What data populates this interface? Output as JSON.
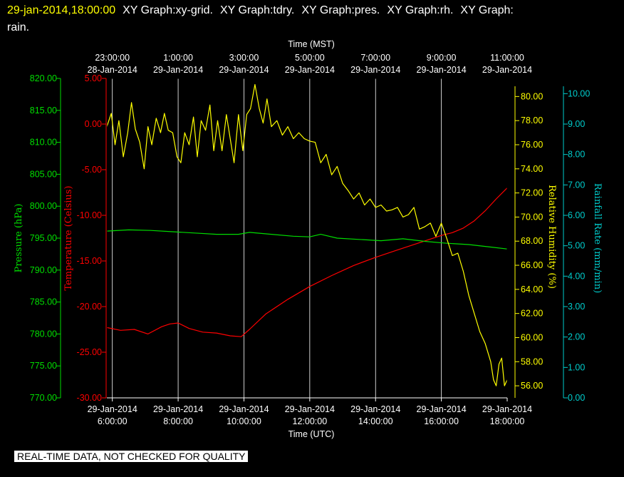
{
  "header": {
    "timestamp": "29-jan-2014,18:00:00",
    "titles": [
      "XY Graph:xy-grid.",
      "XY Graph:tdry.",
      "XY Graph:pres.",
      "XY Graph:rh.",
      "XY Graph:",
      "rain."
    ]
  },
  "footer": {
    "text": "REAL-TIME DATA, NOT CHECKED FOR QUALITY"
  },
  "colors": {
    "temperature": "#ff0000",
    "pressure": "#00dd00",
    "humidity": "#ffff00",
    "rain": "#00cccc",
    "grid": "#ffffff"
  },
  "chart_data": {
    "type": "line",
    "grid": true,
    "x_top_label": "Time (MST)",
    "x_bottom_label": "Time (UTC)",
    "x_range_utc": [
      "2014-01-29 05:50",
      "2014-01-29 18:00"
    ],
    "x_ticks_utc": [
      {
        "time": "6:00:00",
        "date": "29-Jan-2014",
        "utc": "2014-01-29 06:00"
      },
      {
        "time": "8:00:00",
        "date": "29-Jan-2014",
        "utc": "2014-01-29 08:00"
      },
      {
        "time": "10:00:00",
        "date": "29-Jan-2014",
        "utc": "2014-01-29 10:00"
      },
      {
        "time": "12:00:00",
        "date": "29-Jan-2014",
        "utc": "2014-01-29 12:00"
      },
      {
        "time": "14:00:00",
        "date": "29-Jan-2014",
        "utc": "2014-01-29 14:00"
      },
      {
        "time": "16:00:00",
        "date": "29-Jan-2014",
        "utc": "2014-01-29 16:00"
      },
      {
        "time": "18:00:00",
        "date": "29-Jan-2014",
        "utc": "2014-01-29 18:00"
      }
    ],
    "x_ticks_mst": [
      {
        "time": "23:00:00",
        "date": "28-Jan-2014",
        "utc": "2014-01-29 06:00"
      },
      {
        "time": "1:00:00",
        "date": "29-Jan-2014",
        "utc": "2014-01-29 08:00"
      },
      {
        "time": "3:00:00",
        "date": "29-Jan-2014",
        "utc": "2014-01-29 10:00"
      },
      {
        "time": "5:00:00",
        "date": "29-Jan-2014",
        "utc": "2014-01-29 12:00"
      },
      {
        "time": "7:00:00",
        "date": "29-Jan-2014",
        "utc": "2014-01-29 14:00"
      },
      {
        "time": "9:00:00",
        "date": "29-Jan-2014",
        "utc": "2014-01-29 16:00"
      },
      {
        "time": "11:00:00",
        "date": "29-Jan-2014",
        "utc": "2014-01-29 18:00"
      }
    ],
    "axes": {
      "pressure": {
        "label": "Pressure (hPa)",
        "range": [
          770,
          820
        ],
        "ticks": [
          "770.00",
          "775.00",
          "780.00",
          "785.00",
          "790.00",
          "795.00",
          "800.00",
          "805.00",
          "810.00",
          "815.00",
          "820.00"
        ]
      },
      "temperature": {
        "label": "Temperature (Celsius)",
        "range": [
          -30,
          5
        ],
        "ticks": [
          "-30.00",
          "-25.00",
          "-20.00",
          "-15.00",
          "-10.00",
          "-5.00",
          "0.00",
          "5.00"
        ]
      },
      "humidity": {
        "label": "Relative Humidity (%)",
        "range": [
          55,
          81.5
        ],
        "ticks": [
          "56.00",
          "58.00",
          "60.00",
          "62.00",
          "64.00",
          "66.00",
          "68.00",
          "70.00",
          "72.00",
          "74.00",
          "76.00",
          "78.00",
          "80.00"
        ]
      },
      "rain": {
        "label": "Rainfall Rate (mm/min)",
        "range": [
          0,
          10.5
        ],
        "ticks": [
          "0.00",
          "1.00",
          "2.00",
          "3.00",
          "4.00",
          "5.00",
          "6.00",
          "7.00",
          "8.00",
          "9.00",
          "10.00"
        ]
      }
    },
    "series": [
      {
        "key": "temperature",
        "name": "tdry",
        "axis": "temperature",
        "x": [
          "2014-01-29 05:50",
          "2014-01-29 06:15",
          "2014-01-29 06:40",
          "2014-01-29 07:05",
          "2014-01-29 07:30",
          "2014-01-29 07:45",
          "2014-01-29 08:00",
          "2014-01-29 08:20",
          "2014-01-29 08:45",
          "2014-01-29 09:10",
          "2014-01-29 09:35",
          "2014-01-29 09:55",
          "2014-01-29 10:10",
          "2014-01-29 10:40",
          "2014-01-29 11:20",
          "2014-01-29 12:00",
          "2014-01-29 12:40",
          "2014-01-29 13:20",
          "2014-01-29 14:00",
          "2014-01-29 14:40",
          "2014-01-29 15:20",
          "2014-01-29 16:00",
          "2014-01-29 16:20",
          "2014-01-29 16:40",
          "2014-01-29 17:00",
          "2014-01-29 17:20",
          "2014-01-29 17:40",
          "2014-01-29 18:00"
        ],
        "y": [
          -22.3,
          -22.6,
          -22.5,
          -23.0,
          -22.2,
          -21.9,
          -21.8,
          -22.4,
          -22.8,
          -22.9,
          -23.2,
          -23.3,
          -22.5,
          -20.8,
          -19.2,
          -17.8,
          -16.6,
          -15.5,
          -14.6,
          -13.8,
          -13.0,
          -12.2,
          -11.9,
          -11.4,
          -10.6,
          -9.5,
          -8.2,
          -7.0
        ]
      },
      {
        "key": "pressure",
        "name": "pres",
        "axis": "pressure",
        "x": [
          "2014-01-29 05:50",
          "2014-01-29 06:30",
          "2014-01-29 07:10",
          "2014-01-29 07:50",
          "2014-01-29 08:30",
          "2014-01-29 09:10",
          "2014-01-29 09:50",
          "2014-01-29 10:10",
          "2014-01-29 10:50",
          "2014-01-29 11:30",
          "2014-01-29 12:00",
          "2014-01-29 12:20",
          "2014-01-29 12:50",
          "2014-01-29 13:30",
          "2014-01-29 14:10",
          "2014-01-29 14:50",
          "2014-01-29 15:30",
          "2014-01-29 16:10",
          "2014-01-29 16:50",
          "2014-01-29 17:30",
          "2014-01-29 18:00"
        ],
        "y": [
          796.1,
          796.3,
          796.2,
          796.0,
          795.8,
          795.6,
          795.6,
          795.9,
          795.6,
          795.3,
          795.2,
          795.6,
          795.0,
          794.8,
          794.6,
          794.9,
          794.5,
          794.2,
          794.0,
          793.6,
          793.3
        ]
      },
      {
        "key": "humidity",
        "name": "rh",
        "axis": "humidity",
        "x": [
          "2014-01-29 05:50",
          "2014-01-29 05:58",
          "2014-01-29 06:05",
          "2014-01-29 06:12",
          "2014-01-29 06:20",
          "2014-01-29 06:28",
          "2014-01-29 06:35",
          "2014-01-29 06:42",
          "2014-01-29 06:50",
          "2014-01-29 06:58",
          "2014-01-29 07:05",
          "2014-01-29 07:12",
          "2014-01-29 07:20",
          "2014-01-29 07:28",
          "2014-01-29 07:35",
          "2014-01-29 07:42",
          "2014-01-29 07:50",
          "2014-01-29 07:58",
          "2014-01-29 08:05",
          "2014-01-29 08:12",
          "2014-01-29 08:20",
          "2014-01-29 08:28",
          "2014-01-29 08:35",
          "2014-01-29 08:42",
          "2014-01-29 08:50",
          "2014-01-29 08:58",
          "2014-01-29 09:05",
          "2014-01-29 09:12",
          "2014-01-29 09:20",
          "2014-01-29 09:28",
          "2014-01-29 09:35",
          "2014-01-29 09:42",
          "2014-01-29 09:50",
          "2014-01-29 09:58",
          "2014-01-29 10:05",
          "2014-01-29 10:12",
          "2014-01-29 10:20",
          "2014-01-29 10:28",
          "2014-01-29 10:35",
          "2014-01-29 10:42",
          "2014-01-29 10:50",
          "2014-01-29 11:00",
          "2014-01-29 11:10",
          "2014-01-29 11:20",
          "2014-01-29 11:30",
          "2014-01-29 11:40",
          "2014-01-29 11:50",
          "2014-01-29 12:00",
          "2014-01-29 12:10",
          "2014-01-29 12:20",
          "2014-01-29 12:30",
          "2014-01-29 12:40",
          "2014-01-29 12:50",
          "2014-01-29 13:00",
          "2014-01-29 13:10",
          "2014-01-29 13:20",
          "2014-01-29 13:30",
          "2014-01-29 13:40",
          "2014-01-29 13:50",
          "2014-01-29 14:00",
          "2014-01-29 14:10",
          "2014-01-29 14:20",
          "2014-01-29 14:30",
          "2014-01-29 14:40",
          "2014-01-29 14:50",
          "2014-01-29 15:00",
          "2014-01-29 15:10",
          "2014-01-29 15:20",
          "2014-01-29 15:30",
          "2014-01-29 15:40",
          "2014-01-29 15:50",
          "2014-01-29 16:00",
          "2014-01-29 16:10",
          "2014-01-29 16:20",
          "2014-01-29 16:30",
          "2014-01-29 16:40",
          "2014-01-29 16:50",
          "2014-01-29 17:00",
          "2014-01-29 17:10",
          "2014-01-29 17:20",
          "2014-01-29 17:30",
          "2014-01-29 17:35",
          "2014-01-29 17:40",
          "2014-01-29 17:45",
          "2014-01-29 17:50",
          "2014-01-29 17:55",
          "2014-01-29 18:00"
        ],
        "y": [
          77.5,
          78.6,
          76.0,
          78.0,
          75.0,
          77.0,
          79.5,
          77.3,
          76.2,
          74.0,
          77.5,
          76.0,
          78.2,
          77.0,
          78.6,
          77.2,
          77.0,
          75.0,
          74.5,
          77.0,
          76.0,
          78.3,
          75.0,
          78.0,
          77.2,
          79.3,
          75.5,
          78.0,
          75.5,
          78.5,
          76.5,
          74.5,
          78.5,
          75.5,
          78.5,
          79.0,
          81.0,
          79.0,
          77.8,
          79.8,
          77.5,
          78.0,
          76.8,
          77.5,
          76.5,
          77.0,
          76.5,
          76.3,
          76.2,
          74.5,
          75.2,
          73.5,
          74.2,
          72.8,
          72.2,
          71.5,
          72.0,
          71.0,
          71.5,
          70.8,
          71.0,
          70.5,
          70.6,
          70.8,
          70.0,
          70.2,
          70.8,
          69.0,
          69.2,
          69.5,
          68.4,
          69.5,
          68.2,
          66.8,
          67.0,
          65.5,
          63.5,
          62.0,
          60.5,
          59.5,
          58.0,
          56.5,
          56.0,
          57.8,
          58.3,
          56.0,
          56.5
        ]
      },
      {
        "key": "rain",
        "name": "rain",
        "axis": "rain",
        "x": [],
        "y": []
      }
    ]
  }
}
